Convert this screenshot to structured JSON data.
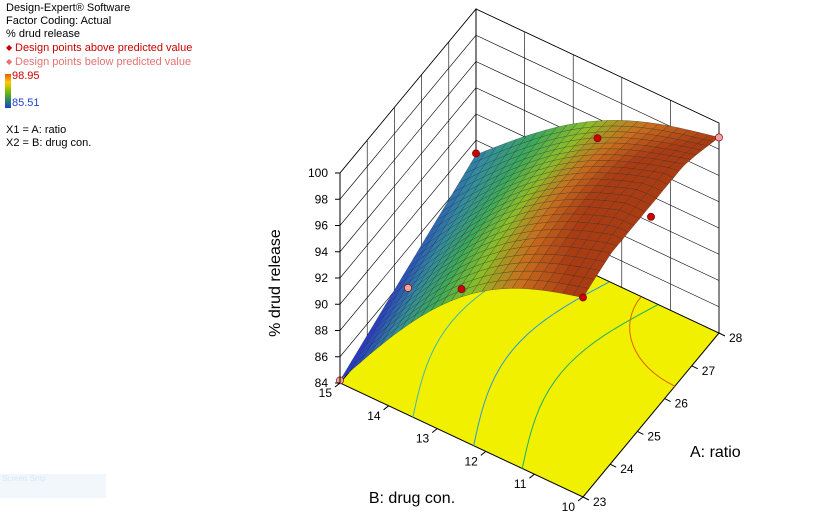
{
  "panel": {
    "software": "Design-Expert® Software",
    "coding": "Factor Coding: Actual",
    "response": "% drud release",
    "above_label": "Design points above predicted value",
    "below_label": "Design points below predicted value",
    "color_max": "98.95",
    "color_min": "85.51",
    "x1": "X1 = A: ratio",
    "x2": "X2 = B: drug con."
  },
  "snip_text": "Screen Snip",
  "chart_data": {
    "type": "surface3d",
    "zlabel": "% drud release",
    "xlabel": "A: ratio",
    "ylabel": "B: drug con.",
    "zlim": [
      84,
      100
    ],
    "xlim": [
      23,
      28
    ],
    "ylim": [
      10,
      15
    ],
    "z_ticks": [
      "84",
      "86",
      "88",
      "90",
      "92",
      "94",
      "96",
      "98",
      "100"
    ],
    "x_ticks": [
      "23",
      "24",
      "25",
      "26",
      "27",
      "28"
    ],
    "y_ticks": [
      "10",
      "11",
      "12",
      "13",
      "14",
      "15"
    ],
    "colors": {
      "floor": "#f0f000",
      "above_point": "#cc0000",
      "below_point": "#f4a0a0"
    },
    "corner_values": {
      "a23_b15": 84.2,
      "a28_b15": 88.9,
      "a23_b10": 99.2,
      "a28_b10": 98.9
    },
    "design_points": [
      {
        "ratio": 23,
        "drug_con": 10,
        "release": 99.2,
        "position": "above"
      },
      {
        "ratio": 28,
        "drug_con": 10,
        "release": 98.9,
        "position": "below"
      },
      {
        "ratio": 23,
        "drug_con": 15,
        "release": 84.2,
        "position": "below"
      },
      {
        "ratio": 28,
        "drug_con": 15,
        "release": 89.0,
        "position": "above"
      },
      {
        "ratio": 25.5,
        "drug_con": 15,
        "release": 85.0,
        "position": "below"
      },
      {
        "ratio": 25.5,
        "drug_con": 10,
        "release": 99.1,
        "position": "above"
      },
      {
        "ratio": 23,
        "drug_con": 12.5,
        "release": 95.5,
        "position": "above"
      },
      {
        "ratio": 28,
        "drug_con": 12.5,
        "release": 94.5,
        "position": "above"
      }
    ]
  }
}
